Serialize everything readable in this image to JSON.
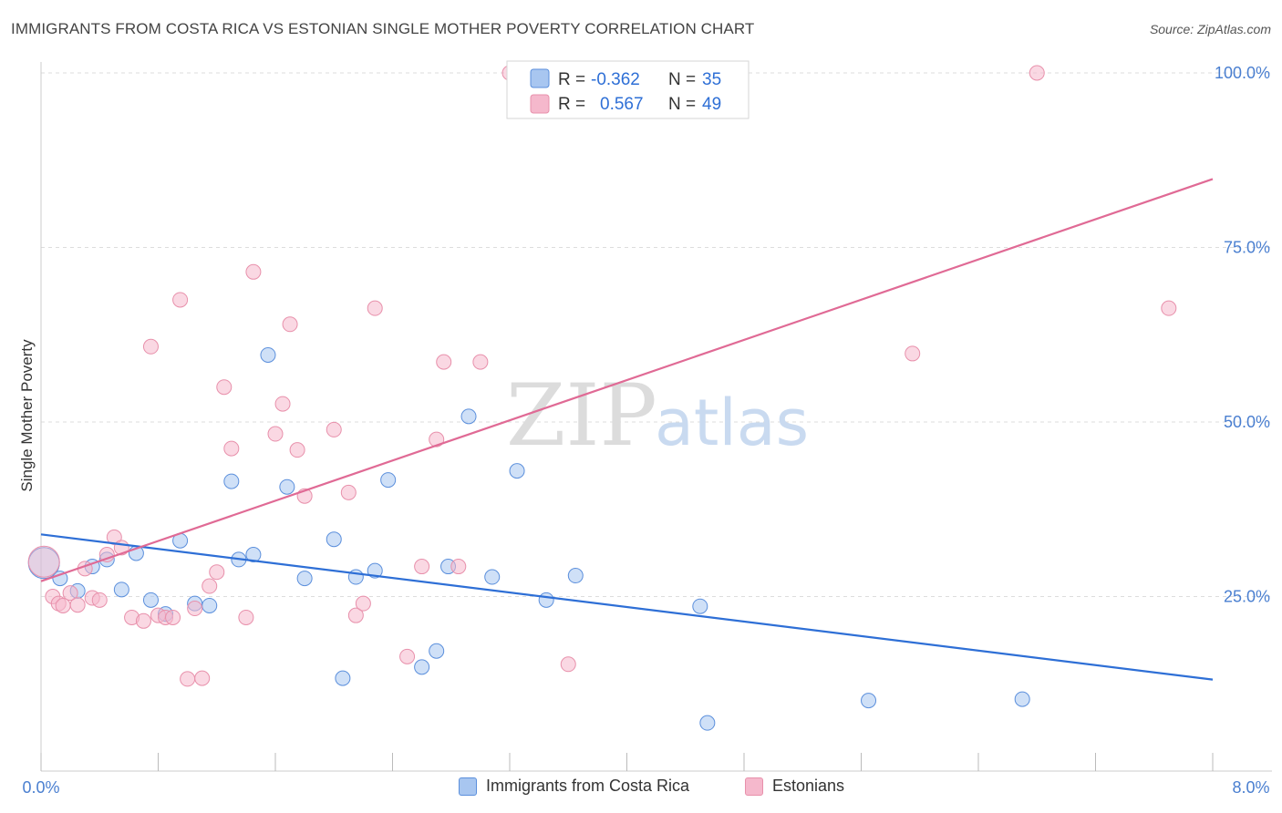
{
  "header": {
    "title": "IMMIGRANTS FROM COSTA RICA VS ESTONIAN SINGLE MOTHER POVERTY CORRELATION CHART",
    "source": "Source: ZipAtlas.com"
  },
  "watermark": {
    "part1": "ZIP",
    "part2": "atlas"
  },
  "colors": {
    "blue_fill": "#a8c6f0",
    "blue_stroke": "#5b8fdc",
    "blue_line": "#2e6fd6",
    "pink_fill": "#f5b8cc",
    "pink_stroke": "#e890ab",
    "pink_line": "#e06a95",
    "tick_label": "#4a7fd0",
    "grid": "#dddddd"
  },
  "stats_legend": [
    {
      "r_label": "R = ",
      "r_value": "-0.362",
      "n_label": "N = ",
      "n_value": "35",
      "series": "blue"
    },
    {
      "r_label": "R = ",
      "r_value": "0.567",
      "n_label": "N = ",
      "n_value": "49",
      "series": "pink"
    }
  ],
  "legend": [
    {
      "label": "Immigrants from Costa Rica",
      "series": "blue"
    },
    {
      "label": "Estonians",
      "series": "pink"
    }
  ],
  "chart_data": {
    "type": "scatter",
    "title": "IMMIGRANTS FROM COSTA RICA VS ESTONIAN SINGLE MOTHER POVERTY CORRELATION CHART",
    "xlabel": "",
    "ylabel": "Single Mother Poverty",
    "xlim": [
      0,
      8
    ],
    "ylim": [
      0,
      100
    ],
    "x_tick_labels": [
      "0.0%",
      "8.0%"
    ],
    "y_ticks": [
      25,
      50,
      75,
      100
    ],
    "y_tick_labels": [
      "25.0%",
      "50.0%",
      "75.0%",
      "100.0%"
    ],
    "grid": true,
    "series": [
      {
        "name": "Immigrants from Costa Rica",
        "color": "blue",
        "points": [
          [
            0.02,
            29.8
          ],
          [
            0.13,
            27.6
          ],
          [
            0.25,
            25.8
          ],
          [
            0.35,
            29.3
          ],
          [
            0.45,
            30.3
          ],
          [
            0.55,
            26.0
          ],
          [
            0.65,
            31.2
          ],
          [
            0.75,
            24.5
          ],
          [
            0.85,
            22.5
          ],
          [
            0.95,
            33.0
          ],
          [
            1.05,
            24.0
          ],
          [
            1.15,
            23.7
          ],
          [
            1.3,
            41.5
          ],
          [
            1.35,
            30.3
          ],
          [
            1.45,
            31.0
          ],
          [
            1.55,
            59.6
          ],
          [
            1.68,
            40.7
          ],
          [
            1.8,
            27.6
          ],
          [
            2.0,
            33.2
          ],
          [
            2.06,
            13.3
          ],
          [
            2.15,
            27.8
          ],
          [
            2.28,
            28.7
          ],
          [
            2.37,
            41.7
          ],
          [
            2.6,
            14.9
          ],
          [
            2.7,
            17.2
          ],
          [
            2.78,
            29.3
          ],
          [
            2.92,
            50.8
          ],
          [
            3.08,
            27.8
          ],
          [
            3.25,
            43.0
          ],
          [
            3.45,
            24.5
          ],
          [
            3.65,
            28.0
          ],
          [
            4.5,
            23.6
          ],
          [
            4.55,
            6.9
          ],
          [
            5.65,
            10.1
          ],
          [
            6.7,
            10.3
          ]
        ]
      },
      {
        "name": "Estonians",
        "color": "pink",
        "points": [
          [
            0.02,
            30.0
          ],
          [
            0.08,
            25.0
          ],
          [
            0.12,
            24.0
          ],
          [
            0.15,
            23.7
          ],
          [
            0.2,
            25.5
          ],
          [
            0.25,
            23.8
          ],
          [
            0.3,
            29.0
          ],
          [
            0.35,
            24.8
          ],
          [
            0.4,
            24.5
          ],
          [
            0.45,
            31.0
          ],
          [
            0.5,
            33.5
          ],
          [
            0.55,
            32.0
          ],
          [
            0.62,
            22.0
          ],
          [
            0.7,
            21.5
          ],
          [
            0.75,
            60.8
          ],
          [
            0.8,
            22.3
          ],
          [
            0.85,
            22.0
          ],
          [
            0.9,
            22.0
          ],
          [
            0.95,
            67.5
          ],
          [
            1.0,
            13.2
          ],
          [
            1.05,
            23.3
          ],
          [
            1.1,
            13.3
          ],
          [
            1.15,
            26.5
          ],
          [
            1.2,
            28.5
          ],
          [
            1.25,
            55.0
          ],
          [
            1.3,
            46.2
          ],
          [
            1.4,
            22.0
          ],
          [
            1.45,
            71.5
          ],
          [
            1.6,
            48.3
          ],
          [
            1.65,
            52.6
          ],
          [
            1.7,
            64.0
          ],
          [
            1.75,
            46.0
          ],
          [
            1.8,
            39.4
          ],
          [
            2.0,
            48.9
          ],
          [
            2.1,
            39.9
          ],
          [
            2.15,
            22.3
          ],
          [
            2.2,
            24.0
          ],
          [
            2.28,
            66.3
          ],
          [
            2.5,
            16.4
          ],
          [
            2.6,
            29.3
          ],
          [
            2.7,
            47.5
          ],
          [
            2.75,
            58.6
          ],
          [
            2.85,
            29.3
          ],
          [
            3.0,
            58.6
          ],
          [
            3.2,
            100.0
          ],
          [
            3.6,
            15.3
          ],
          [
            5.95,
            59.8
          ],
          [
            6.8,
            100.0
          ],
          [
            7.7,
            66.3
          ]
        ]
      }
    ],
    "trend_lines": [
      {
        "series": "Immigrants from Costa Rica",
        "x": [
          0,
          8
        ],
        "y": [
          33.9,
          13.1
        ]
      },
      {
        "series": "Estonians",
        "x": [
          0,
          8
        ],
        "y": [
          27.2,
          84.8
        ]
      }
    ]
  }
}
